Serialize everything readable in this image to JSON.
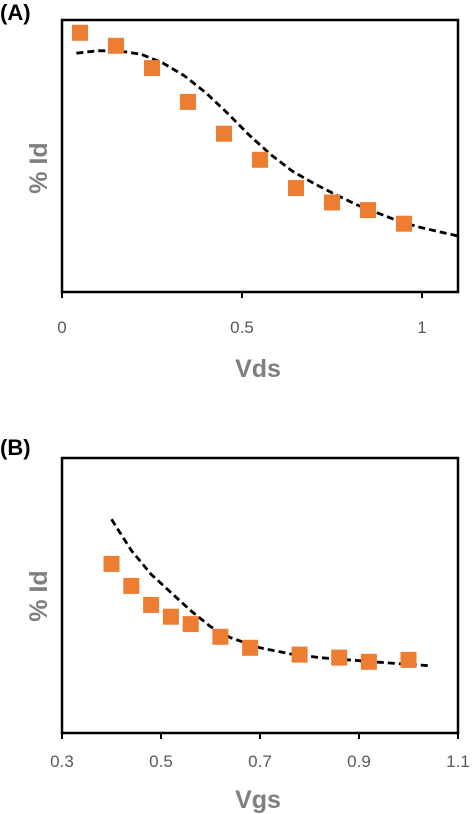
{
  "chart_data": [
    {
      "type": "scatter",
      "panel_label": "(A)",
      "xlabel": "Vds",
      "ylabel": "% Id",
      "xlim": [
        0,
        1.1
      ],
      "ylim": [
        0,
        1
      ],
      "x_ticks": [
        0,
        0.5,
        1
      ],
      "x_tick_labels": [
        "0",
        "0.5",
        "1"
      ],
      "y_tick_labels_shown": false,
      "grid": false,
      "series": [
        {
          "kind": "markers",
          "marker": "square",
          "color": "#ed7d31",
          "points": [
            {
              "x": 0.05,
              "y": 0.953
            },
            {
              "x": 0.15,
              "y": 0.905
            },
            {
              "x": 0.25,
              "y": 0.823
            },
            {
              "x": 0.35,
              "y": 0.699
            },
            {
              "x": 0.45,
              "y": 0.582
            },
            {
              "x": 0.55,
              "y": 0.486
            },
            {
              "x": 0.65,
              "y": 0.382
            },
            {
              "x": 0.75,
              "y": 0.329
            },
            {
              "x": 0.85,
              "y": 0.301
            },
            {
              "x": 0.95,
              "y": 0.251
            }
          ]
        },
        {
          "kind": "fit-line",
          "style": "dashed",
          "color": "#000000",
          "points": [
            {
              "x": 0.04,
              "y": 0.878
            },
            {
              "x": 0.1,
              "y": 0.887
            },
            {
              "x": 0.16,
              "y": 0.886
            },
            {
              "x": 0.22,
              "y": 0.874
            },
            {
              "x": 0.28,
              "y": 0.842
            },
            {
              "x": 0.34,
              "y": 0.795
            },
            {
              "x": 0.4,
              "y": 0.732
            },
            {
              "x": 0.46,
              "y": 0.657
            },
            {
              "x": 0.52,
              "y": 0.577
            },
            {
              "x": 0.58,
              "y": 0.505
            },
            {
              "x": 0.64,
              "y": 0.444
            },
            {
              "x": 0.7,
              "y": 0.399
            },
            {
              "x": 0.76,
              "y": 0.358
            },
            {
              "x": 0.82,
              "y": 0.32
            },
            {
              "x": 0.88,
              "y": 0.289
            },
            {
              "x": 0.94,
              "y": 0.258
            },
            {
              "x": 1.0,
              "y": 0.236
            },
            {
              "x": 1.06,
              "y": 0.218
            },
            {
              "x": 1.1,
              "y": 0.206
            }
          ]
        }
      ]
    },
    {
      "type": "scatter",
      "panel_label": "(B)",
      "xlabel": "Vgs",
      "ylabel": "% Id",
      "xlim": [
        0.3,
        1.1
      ],
      "ylim": [
        0,
        1
      ],
      "x_ticks": [
        0.3,
        0.5,
        0.7,
        0.9,
        1.1
      ],
      "x_tick_labels": [
        "0.3",
        "0.5",
        "0.7",
        "0.9",
        "1.1"
      ],
      "y_tick_labels_shown": false,
      "grid": false,
      "series": [
        {
          "kind": "markers",
          "marker": "square",
          "color": "#ed7d31",
          "points": [
            {
              "x": 0.4,
              "y": 0.615
            },
            {
              "x": 0.44,
              "y": 0.535
            },
            {
              "x": 0.48,
              "y": 0.466
            },
            {
              "x": 0.52,
              "y": 0.423
            },
            {
              "x": 0.56,
              "y": 0.396
            },
            {
              "x": 0.62,
              "y": 0.35
            },
            {
              "x": 0.68,
              "y": 0.31
            },
            {
              "x": 0.78,
              "y": 0.285
            },
            {
              "x": 0.86,
              "y": 0.274
            },
            {
              "x": 0.92,
              "y": 0.259
            },
            {
              "x": 1.0,
              "y": 0.266
            }
          ]
        },
        {
          "kind": "fit-line",
          "style": "dashed",
          "color": "#000000",
          "points": [
            {
              "x": 0.4,
              "y": 0.777
            },
            {
              "x": 0.44,
              "y": 0.664
            },
            {
              "x": 0.48,
              "y": 0.577
            },
            {
              "x": 0.52,
              "y": 0.511
            },
            {
              "x": 0.56,
              "y": 0.445
            },
            {
              "x": 0.6,
              "y": 0.387
            },
            {
              "x": 0.64,
              "y": 0.347
            },
            {
              "x": 0.7,
              "y": 0.31
            },
            {
              "x": 0.76,
              "y": 0.288
            },
            {
              "x": 0.82,
              "y": 0.274
            },
            {
              "x": 0.9,
              "y": 0.263
            },
            {
              "x": 0.98,
              "y": 0.252
            },
            {
              "x": 1.04,
              "y": 0.245
            }
          ]
        }
      ]
    }
  ]
}
